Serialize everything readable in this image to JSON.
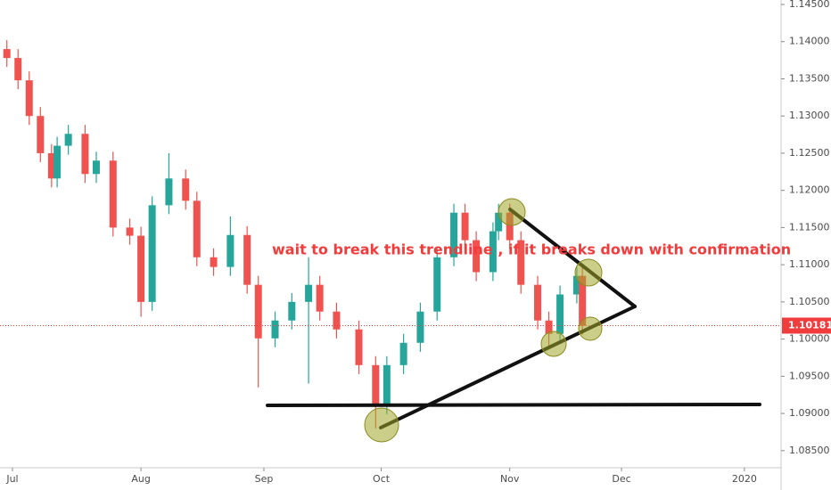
{
  "chart_data": {
    "type": "candlestick",
    "x": [
      -1,
      1,
      3,
      5,
      7,
      8,
      10,
      13,
      15,
      18,
      21,
      23,
      25,
      28,
      31,
      33,
      36,
      39,
      42,
      44,
      47,
      50,
      53,
      55,
      58,
      62,
      65,
      67,
      70,
      73,
      76,
      79,
      81,
      83,
      86,
      87,
      89,
      91,
      94,
      96,
      98,
      101,
      102
    ],
    "open": [
      1.139,
      1.1378,
      1.1348,
      1.13,
      1.125,
      1.1216,
      1.126,
      1.1276,
      1.1222,
      1.124,
      1.115,
      1.1139,
      1.105,
      1.118,
      1.1216,
      1.1186,
      1.111,
      1.1097,
      1.114,
      1.1073,
      1.1001,
      1.1025,
      1.105,
      1.1073,
      1.1037,
      1.1013,
      1.0965,
      1.0911,
      1.0965,
      1.0995,
      1.1037,
      1.111,
      1.117,
      1.1133,
      1.109,
      1.1145,
      1.117,
      1.1133,
      1.1073,
      1.1025,
      1.1007,
      1.106,
      1.1085
    ],
    "high": [
      1.1402,
      1.139,
      1.136,
      1.1312,
      1.1262,
      1.1272,
      1.1288,
      1.1288,
      1.1252,
      1.1252,
      1.1162,
      1.1151,
      1.1192,
      1.125,
      1.1228,
      1.1198,
      1.1122,
      1.1165,
      1.1152,
      1.1085,
      1.1037,
      1.1062,
      1.111,
      1.1085,
      1.1049,
      1.1025,
      1.0977,
      1.0977,
      1.1007,
      1.1049,
      1.1122,
      1.1182,
      1.1182,
      1.1145,
      1.1157,
      1.1182,
      1.1182,
      1.1145,
      1.1085,
      1.1037,
      1.1072,
      1.1097,
      1.1097
    ],
    "low": [
      1.1366,
      1.1336,
      1.1288,
      1.1238,
      1.1204,
      1.1204,
      1.1248,
      1.121,
      1.121,
      1.1138,
      1.1127,
      1.103,
      1.1038,
      1.1168,
      1.1174,
      1.1098,
      1.1085,
      1.1085,
      1.1061,
      1.0935,
      1.0989,
      1.1013,
      1.094,
      1.1025,
      1.1001,
      1.0953,
      1.088,
      1.0899,
      1.0953,
      1.0983,
      1.1025,
      1.1098,
      1.1121,
      1.1078,
      1.1078,
      1.1133,
      1.1121,
      1.1061,
      1.1013,
      1.099,
      1.0995,
      1.1048,
      1.1006
    ],
    "close": [
      1.1378,
      1.1348,
      1.13,
      1.125,
      1.1216,
      1.126,
      1.1276,
      1.1222,
      1.124,
      1.115,
      1.1139,
      1.105,
      1.118,
      1.1216,
      1.1186,
      1.111,
      1.1097,
      1.114,
      1.1073,
      1.1001,
      1.1025,
      1.105,
      1.1073,
      1.1037,
      1.1013,
      1.0965,
      1.0911,
      1.0965,
      1.0995,
      1.1037,
      1.111,
      1.117,
      1.1133,
      1.109,
      1.1145,
      1.117,
      1.1133,
      1.1073,
      1.1025,
      1.1007,
      1.106,
      1.1085,
      1.1018
    ],
    "up_color": "#26a69a",
    "down_color": "#ef5350",
    "xlim": [
      -2.23,
      137.4
    ],
    "ylim": [
      1.0827,
      1.1456
    ],
    "xticks": [
      {
        "value": 0,
        "label": "Jul"
      },
      {
        "value": 23,
        "label": "Aug"
      },
      {
        "value": 45,
        "label": "Sep"
      },
      {
        "value": 66,
        "label": "Oct"
      },
      {
        "value": 89,
        "label": "Nov"
      },
      {
        "value": 109,
        "label": "Dec"
      },
      {
        "value": 131,
        "label": "2020"
      }
    ],
    "yticks": [
      {
        "value": 1.085,
        "label": "1.08500"
      },
      {
        "value": 1.09,
        "label": "1.09000"
      },
      {
        "value": 1.095,
        "label": "1.09500"
      },
      {
        "value": 1.1,
        "label": "1.10000"
      },
      {
        "value": 1.105,
        "label": "1.10500"
      },
      {
        "value": 1.11,
        "label": "1.11000"
      },
      {
        "value": 1.115,
        "label": "1.11500"
      },
      {
        "value": 1.12,
        "label": "1.12000"
      },
      {
        "value": 1.125,
        "label": "1.12500"
      },
      {
        "value": 1.13,
        "label": "1.13000"
      },
      {
        "value": 1.135,
        "label": "1.13500"
      },
      {
        "value": 1.14,
        "label": "1.14000"
      },
      {
        "value": 1.145,
        "label": "1.14500"
      }
    ],
    "last_price": {
      "value": 1.10181,
      "label": "1.10181"
    },
    "last_price_color": "#f03c3c",
    "annotation": "wait to break this trendline , if it breaks down with confirmation"
  }
}
